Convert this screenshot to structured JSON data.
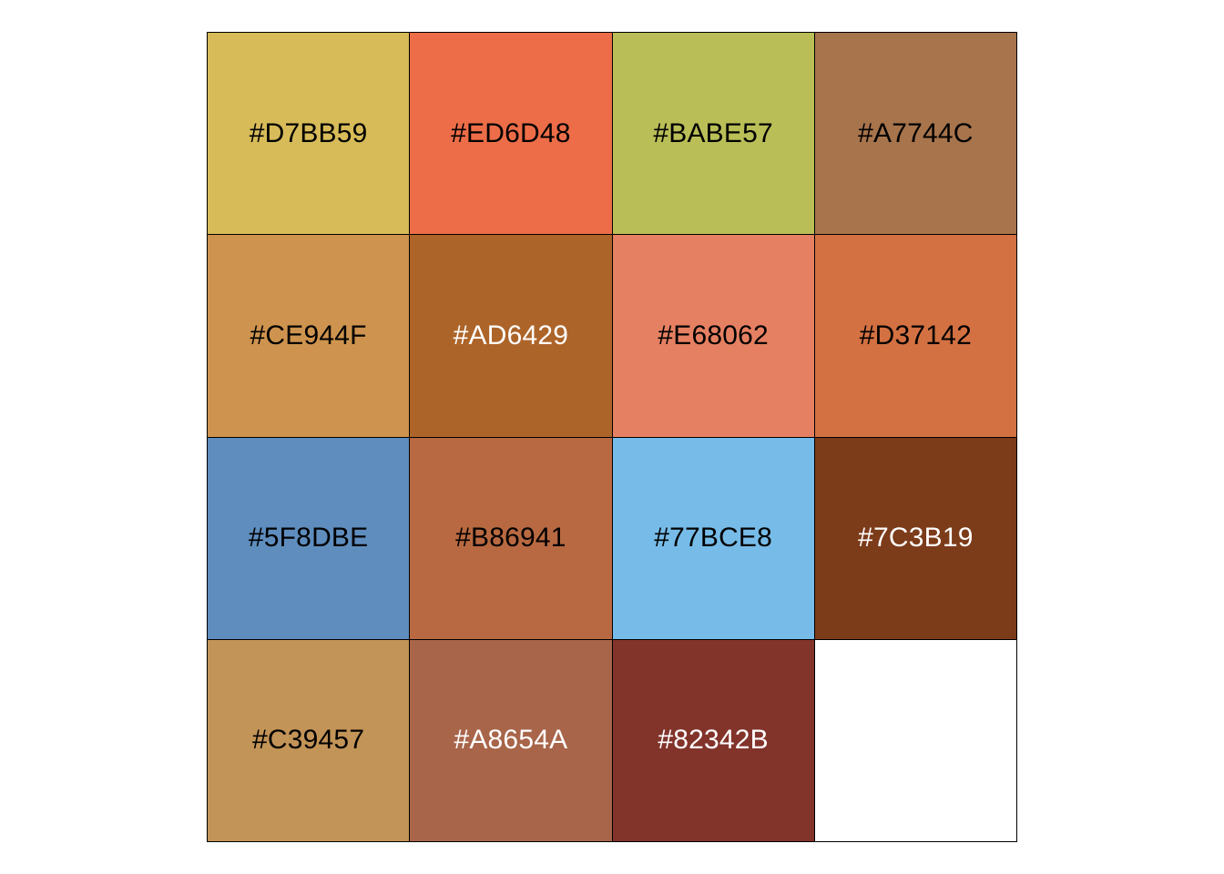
{
  "palette": {
    "swatches": [
      {
        "label": "#D7BB59",
        "color": "#D7BB59",
        "text_color": "#000000"
      },
      {
        "label": "#ED6D48",
        "color": "#ED6D48",
        "text_color": "#000000"
      },
      {
        "label": "#BABE57",
        "color": "#BABE57",
        "text_color": "#000000"
      },
      {
        "label": "#A7744C",
        "color": "#A7744C",
        "text_color": "#000000"
      },
      {
        "label": "#CE944F",
        "color": "#CE944F",
        "text_color": "#000000"
      },
      {
        "label": "#AD6429",
        "color": "#AD6429",
        "text_color": "#FFFFFF"
      },
      {
        "label": "#E68062",
        "color": "#E68062",
        "text_color": "#000000"
      },
      {
        "label": "#D37142",
        "color": "#D37142",
        "text_color": "#000000"
      },
      {
        "label": "#5F8DBE",
        "color": "#5F8DBE",
        "text_color": "#000000"
      },
      {
        "label": "#B86941",
        "color": "#B86941",
        "text_color": "#000000"
      },
      {
        "label": "#77BCE8",
        "color": "#77BCE8",
        "text_color": "#000000"
      },
      {
        "label": "#7C3B19",
        "color": "#7C3B19",
        "text_color": "#FFFFFF"
      },
      {
        "label": "#C39457",
        "color": "#C39457",
        "text_color": "#000000"
      },
      {
        "label": "#A8654A",
        "color": "#A8654A",
        "text_color": "#FFFFFF"
      },
      {
        "label": "#82342B",
        "color": "#82342B",
        "text_color": "#FFFFFF"
      },
      {
        "label": "",
        "color": "#FFFFFF",
        "text_color": "#000000"
      }
    ]
  }
}
